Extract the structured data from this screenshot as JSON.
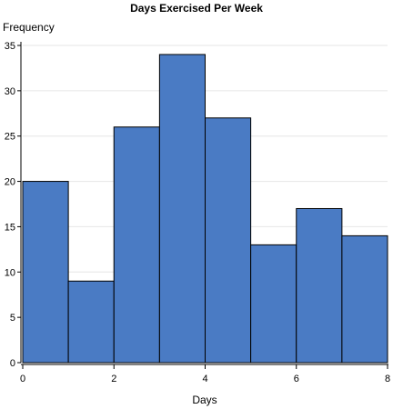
{
  "chart_data": {
    "type": "bar",
    "title": "Days Exercised Per Week",
    "xlabel": "Days",
    "ylabel": "Frequency",
    "bins": [
      {
        "start": 0,
        "end": 1,
        "value": 20
      },
      {
        "start": 1,
        "end": 2,
        "value": 9
      },
      {
        "start": 2,
        "end": 3,
        "value": 26
      },
      {
        "start": 3,
        "end": 4,
        "value": 34
      },
      {
        "start": 4,
        "end": 5,
        "value": 27
      },
      {
        "start": 5,
        "end": 6,
        "value": 13
      },
      {
        "start": 6,
        "end": 7,
        "value": 17
      },
      {
        "start": 7,
        "end": 8,
        "value": 14
      }
    ],
    "categories": [
      "0-1",
      "1-2",
      "2-3",
      "3-4",
      "4-5",
      "5-6",
      "6-7",
      "7-8"
    ],
    "values": [
      20,
      9,
      26,
      34,
      27,
      13,
      17,
      14
    ],
    "xlim": [
      0,
      8
    ],
    "ylim": [
      0,
      35
    ],
    "x_ticks": [
      0,
      2,
      4,
      6,
      8
    ],
    "y_ticks": [
      0,
      5,
      10,
      15,
      20,
      25,
      30,
      35
    ],
    "grid": true,
    "legend": "none",
    "bar_color": "#4a7bc4",
    "bar_edge_color": "#000000",
    "grid_color": "#e6e6e6"
  }
}
